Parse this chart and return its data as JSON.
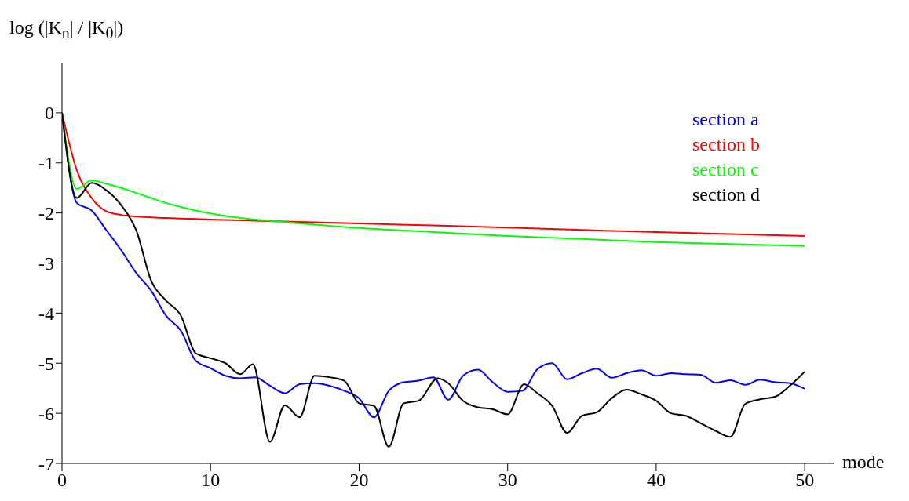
{
  "chart_data": {
    "type": "line",
    "xlabel": "mode",
    "ylabel": "log (|K$_{n}$| / |K$_{0}$|)",
    "xlim": [
      0,
      52
    ],
    "xticks": [
      0,
      10,
      20,
      30,
      40,
      50
    ],
    "ylim": [
      -7,
      1
    ],
    "yticks": [
      -7,
      -6,
      -5,
      -4,
      -3,
      -2,
      -1,
      0
    ],
    "grid": false,
    "legend": "top right",
    "series": [
      {
        "name": "section a",
        "color": "#0000ff",
        "x": [
          0,
          1,
          2,
          3,
          4,
          5,
          6,
          7,
          8,
          9,
          10,
          11,
          12,
          13,
          14,
          15,
          16,
          17,
          18,
          19,
          20,
          21,
          22,
          23,
          24,
          25,
          26,
          27,
          28,
          29,
          30,
          31,
          32,
          33,
          34,
          35,
          36,
          37,
          38,
          39,
          40,
          41,
          42,
          43,
          44,
          45,
          46,
          47,
          48,
          49,
          50
        ],
        "values": [
          0,
          -1.8,
          -1.95,
          -2.35,
          -2.75,
          -3.2,
          -3.55,
          -4.05,
          -4.35,
          -4.95,
          -5.1,
          -5.25,
          -5.3,
          -5.28,
          -5.45,
          -5.6,
          -5.42,
          -5.4,
          -5.45,
          -5.55,
          -5.7,
          -6.08,
          -5.55,
          -5.38,
          -5.35,
          -5.28,
          -5.73,
          -5.25,
          -5.13,
          -5.38,
          -5.57,
          -5.55,
          -5.12,
          -5.0,
          -5.32,
          -5.2,
          -5.11,
          -5.29,
          -5.2,
          -5.14,
          -5.25,
          -5.2,
          -5.22,
          -5.23,
          -5.39,
          -5.34,
          -5.43,
          -5.33,
          -5.38,
          -5.4,
          -5.51
        ]
      },
      {
        "name": "section b",
        "color": "#ff0000",
        "x": [
          0,
          1,
          2,
          3,
          4,
          5,
          7,
          10,
          15,
          20,
          25,
          30,
          35,
          40,
          45,
          50
        ],
        "values": [
          0,
          -1.15,
          -1.7,
          -1.97,
          -2.04,
          -2.07,
          -2.1,
          -2.13,
          -2.17,
          -2.21,
          -2.25,
          -2.29,
          -2.34,
          -2.38,
          -2.42,
          -2.46
        ]
      },
      {
        "name": "section c",
        "color": "#00ff00",
        "x": [
          0,
          1,
          2,
          3,
          4,
          5,
          6,
          7,
          8,
          9,
          10,
          12,
          15,
          20,
          25,
          30,
          35,
          40,
          45,
          50
        ],
        "values": [
          0,
          -1.52,
          -1.35,
          -1.42,
          -1.5,
          -1.6,
          -1.7,
          -1.8,
          -1.88,
          -1.95,
          -2.01,
          -2.1,
          -2.18,
          -2.3,
          -2.38,
          -2.46,
          -2.52,
          -2.58,
          -2.62,
          -2.66
        ]
      },
      {
        "name": "section d",
        "color": "#000000",
        "x": [
          0,
          1,
          2,
          3,
          4,
          5,
          6,
          7,
          8,
          9,
          10,
          11,
          12,
          12.85,
          14,
          15,
          16,
          17,
          18,
          19,
          20,
          21,
          22,
          23,
          24,
          25.3,
          26,
          27,
          28,
          29,
          30,
          31.1,
          32,
          33,
          34,
          35,
          36,
          37,
          38,
          39,
          40,
          41,
          42,
          43,
          44,
          45,
          46,
          47,
          48,
          49,
          50
        ],
        "values": [
          0,
          -1.7,
          -1.4,
          -1.55,
          -1.85,
          -2.35,
          -3.35,
          -3.75,
          -4.05,
          -4.8,
          -4.9,
          -5.0,
          -5.22,
          -5.02,
          -6.57,
          -5.84,
          -6.08,
          -5.25,
          -5.28,
          -5.35,
          -5.8,
          -5.85,
          -6.67,
          -5.8,
          -5.75,
          -5.3,
          -5.4,
          -5.75,
          -5.88,
          -5.92,
          -6.02,
          -5.42,
          -5.6,
          -5.85,
          -6.39,
          -6.05,
          -5.98,
          -5.7,
          -5.53,
          -5.62,
          -5.75,
          -6.0,
          -6.05,
          -6.2,
          -6.35,
          -6.47,
          -5.81,
          -5.72,
          -5.67,
          -5.45,
          -5.17
        ]
      }
    ]
  }
}
